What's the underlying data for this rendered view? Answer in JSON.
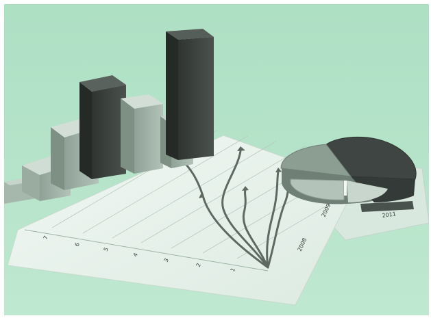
{
  "scene": {
    "axis_ticks": [
      "7",
      "6",
      "5",
      "4",
      "3",
      "2",
      "1"
    ],
    "paper_labels": [
      "2008",
      "2009",
      "2011"
    ],
    "palette": {
      "background": "#b4e3c9",
      "paper": "#e8f2eb",
      "bar_dark": "#3e4441",
      "bar_light": "#98aa9f",
      "pie_dark": "#3f4542",
      "pie_mid": "#7f9086",
      "pie_light": "#b8c8bd",
      "line": "#5e6962"
    }
  }
}
